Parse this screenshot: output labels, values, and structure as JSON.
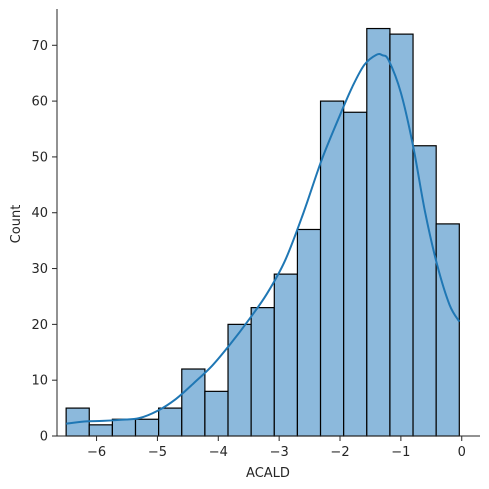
{
  "chart_data": {
    "type": "bar",
    "subtype": "histogram",
    "title": "",
    "xlabel": "ACALD",
    "ylabel": "Count",
    "xlim": [
      -6.65,
      0.3
    ],
    "ylim": [
      0,
      76.5
    ],
    "x_ticks": [
      -6,
      -5,
      -4,
      -3,
      -2,
      -1,
      0
    ],
    "y_ticks": [
      0,
      10,
      20,
      30,
      40,
      50,
      60,
      70
    ],
    "bin_edges": [
      -6.5,
      -6.12,
      -5.74,
      -5.36,
      -4.98,
      -4.6,
      -4.22,
      -3.84,
      -3.46,
      -3.08,
      -2.7,
      -2.32,
      -1.94,
      -1.56,
      -1.18,
      -0.8,
      -0.42,
      -0.04
    ],
    "values": [
      5,
      2,
      3,
      3,
      5,
      12,
      8,
      20,
      23,
      29,
      37,
      60,
      58,
      73,
      72,
      52,
      38
    ],
    "kde": {
      "x": [
        -6.5,
        -6.2,
        -5.9,
        -5.6,
        -5.3,
        -5.0,
        -4.7,
        -4.4,
        -4.1,
        -3.8,
        -3.5,
        -3.2,
        -2.9,
        -2.6,
        -2.3,
        -2.0,
        -1.8,
        -1.6,
        -1.4,
        -1.3,
        -1.2,
        -1.0,
        -0.8,
        -0.6,
        -0.4,
        -0.2,
        -0.04
      ],
      "y": [
        2.2,
        2.6,
        2.7,
        2.9,
        3.2,
        4.5,
        6.6,
        9.5,
        12.6,
        16.5,
        20.8,
        25.5,
        31.5,
        40,
        49.5,
        57.5,
        62.5,
        66.5,
        68.3,
        68.2,
        67.3,
        61.5,
        52,
        40,
        30.5,
        23.5,
        20.5
      ]
    },
    "grid": false,
    "legend": "none",
    "colors": {
      "bar_fill": "#8cb9dc",
      "bar_edge": "#000000",
      "kde_line": "#1f77b4",
      "axis": "#262626"
    }
  }
}
